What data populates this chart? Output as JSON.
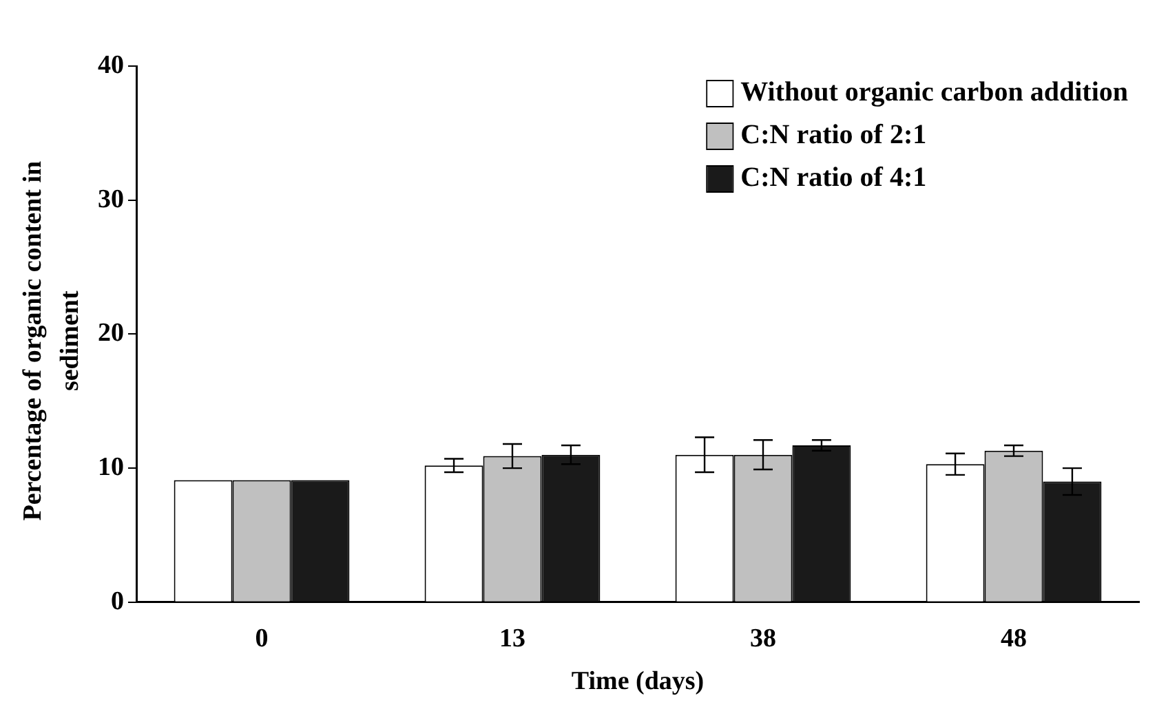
{
  "chart_data": {
    "type": "bar",
    "xlabel": "Time (days)",
    "ylabel": "Percentage of organic content in sediment",
    "categories": [
      "0",
      "13",
      "38",
      "48"
    ],
    "series": [
      {
        "name": "Without organic carbon addition",
        "color": "#ffffff",
        "values": [
          9.1,
          10.2,
          11.0,
          10.3
        ],
        "errors": [
          null,
          0.5,
          1.3,
          0.8
        ]
      },
      {
        "name": "C:N ratio of 2:1",
        "color": "#c0c0c0",
        "values": [
          9.1,
          10.9,
          11.0,
          11.3
        ],
        "errors": [
          null,
          0.9,
          1.1,
          0.4
        ]
      },
      {
        "name": "C:N ratio of 4:1",
        "color": "#1a1a1a",
        "values": [
          9.1,
          11.0,
          11.7,
          9.0
        ],
        "errors": [
          null,
          0.7,
          0.4,
          1.0
        ]
      }
    ],
    "ylim": [
      0,
      40
    ],
    "yticks": [
      0,
      10,
      20,
      30,
      40
    ],
    "grid": false,
    "legend": "top right"
  }
}
